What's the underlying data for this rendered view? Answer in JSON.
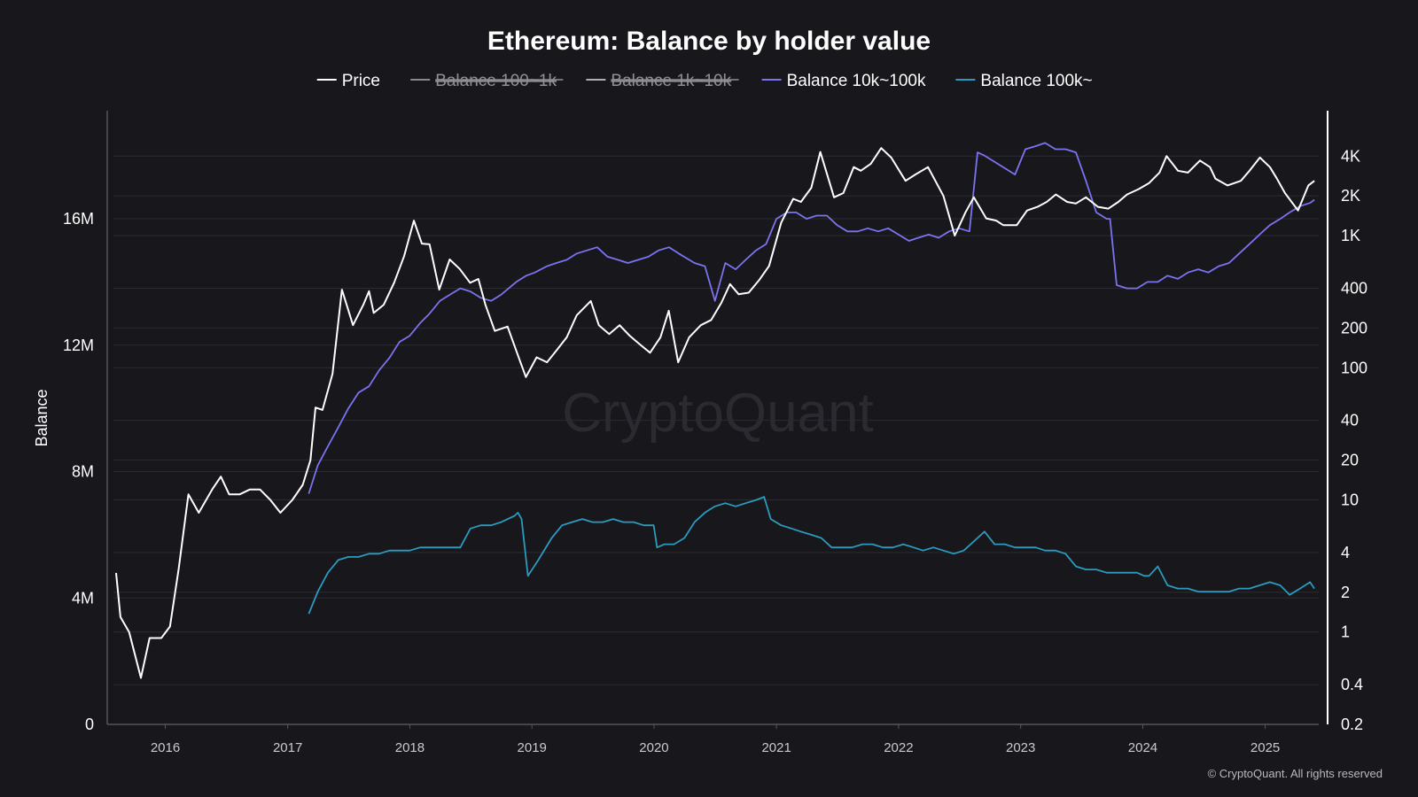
{
  "chart_data": {
    "type": "line",
    "title": "Ethereum: Balance by holder value",
    "watermark": "CryptoQuant",
    "footer": "© CryptoQuant. All rights reserved",
    "legend_position": "top-center",
    "grid": true,
    "y_left": {
      "label": "Balance",
      "range": [
        0,
        19000000
      ],
      "ticks": [
        0,
        4000000,
        8000000,
        12000000,
        16000000
      ],
      "tick_labels": [
        "0",
        "4M",
        "8M",
        "12M",
        "16M"
      ]
    },
    "y_right": {
      "label": "",
      "scale": "log",
      "range": [
        0.2,
        7000
      ],
      "ticks": [
        0.2,
        0.4,
        1,
        2,
        4,
        10,
        20,
        40,
        100,
        200,
        400,
        1000,
        2000,
        4000
      ],
      "tick_labels": [
        "0.2",
        "0.4",
        "1",
        "2",
        "4",
        "10",
        "20",
        "40",
        "100",
        "200",
        "400",
        "1K",
        "2K",
        "4K"
      ]
    },
    "x_axis": {
      "range": [
        "2015-07-30",
        "2025-06-10"
      ],
      "ticks": [
        "2016-01-01",
        "2017-01-01",
        "2018-01-01",
        "2019-01-01",
        "2020-01-01",
        "2021-01-01",
        "2022-01-01",
        "2023-01-01",
        "2024-01-01",
        "2025-01-01"
      ],
      "tick_labels": [
        "2016",
        "2017",
        "2018",
        "2019",
        "2020",
        "2021",
        "2022",
        "2023",
        "2024",
        "2025"
      ]
    },
    "colors": {
      "background": "#17171c",
      "price": "#ffffff",
      "balance_100_1k": "#8a8a8a",
      "balance_1k_10k": "#b0b0b0",
      "balance_10k_100k": "#7b73f0",
      "balance_100k": "#2b9bbf"
    },
    "series": [
      {
        "name": "Price",
        "axis": "right",
        "visible": true,
        "color": "#ffffff",
        "x": [
          "2015-08-07",
          "2015-08-20",
          "2015-09-15",
          "2015-10-20",
          "2015-11-15",
          "2015-12-20",
          "2016-01-15",
          "2016-02-10",
          "2016-03-10",
          "2016-04-10",
          "2016-05-20",
          "2016-06-15",
          "2016-07-10",
          "2016-08-10",
          "2016-09-10",
          "2016-10-10",
          "2016-11-10",
          "2016-12-10",
          "2017-01-15",
          "2017-02-15",
          "2017-03-10",
          "2017-03-25",
          "2017-04-15",
          "2017-05-15",
          "2017-06-12",
          "2017-07-15",
          "2017-08-15",
          "2017-09-01",
          "2017-09-15",
          "2017-10-15",
          "2017-11-15",
          "2017-12-15",
          "2018-01-13",
          "2018-02-06",
          "2018-03-01",
          "2018-03-30",
          "2018-04-30",
          "2018-05-30",
          "2018-06-30",
          "2018-07-25",
          "2018-08-15",
          "2018-09-12",
          "2018-10-20",
          "2018-11-25",
          "2018-12-14",
          "2019-01-15",
          "2019-02-15",
          "2019-03-15",
          "2019-04-15",
          "2019-05-15",
          "2019-06-26",
          "2019-07-20",
          "2019-08-20",
          "2019-09-20",
          "2019-10-20",
          "2019-11-20",
          "2019-12-20",
          "2020-01-20",
          "2020-02-14",
          "2020-03-13",
          "2020-04-15",
          "2020-05-20",
          "2020-06-20",
          "2020-07-20",
          "2020-08-15",
          "2020-09-10",
          "2020-10-10",
          "2020-11-10",
          "2020-12-10",
          "2021-01-15",
          "2021-02-20",
          "2021-03-15",
          "2021-04-15",
          "2021-05-12",
          "2021-06-22",
          "2021-07-20",
          "2021-08-20",
          "2021-09-10",
          "2021-10-10",
          "2021-11-10",
          "2021-12-10",
          "2022-01-22",
          "2022-02-20",
          "2022-03-30",
          "2022-05-15",
          "2022-06-18",
          "2022-07-20",
          "2022-08-14",
          "2022-09-20",
          "2022-10-20",
          "2022-11-10",
          "2022-12-20",
          "2023-01-20",
          "2023-02-20",
          "2023-03-20",
          "2023-04-16",
          "2023-05-20",
          "2023-06-15",
          "2023-07-15",
          "2023-08-20",
          "2023-09-20",
          "2023-10-20",
          "2023-11-15",
          "2023-12-20",
          "2024-01-20",
          "2024-02-20",
          "2024-03-12",
          "2024-04-15",
          "2024-05-15",
          "2024-06-20",
          "2024-07-20",
          "2024-08-05",
          "2024-09-10",
          "2024-10-20",
          "2024-11-15",
          "2024-12-16",
          "2025-01-15",
          "2025-02-05",
          "2025-03-01",
          "2025-04-09",
          "2025-05-10",
          "2025-05-28"
        ],
        "values": [
          2.8,
          1.3,
          1.0,
          0.45,
          0.9,
          0.9,
          1.1,
          3.0,
          11,
          8.0,
          12,
          15,
          11,
          11,
          12,
          12,
          10,
          8,
          10,
          13,
          20,
          50,
          48,
          90,
          390,
          210,
          300,
          380,
          260,
          300,
          440,
          700,
          1300,
          870,
          860,
          390,
          660,
          560,
          440,
          470,
          300,
          190,
          205,
          115,
          85,
          120,
          110,
          135,
          170,
          250,
          320,
          210,
          180,
          210,
          175,
          150,
          130,
          170,
          270,
          110,
          170,
          210,
          230,
          310,
          430,
          360,
          370,
          460,
          590,
          1250,
          1900,
          1800,
          2300,
          4300,
          1950,
          2100,
          3300,
          3100,
          3500,
          4600,
          3900,
          2600,
          2900,
          3300,
          2000,
          1000,
          1500,
          1950,
          1350,
          1300,
          1200,
          1200,
          1550,
          1650,
          1800,
          2050,
          1800,
          1750,
          1950,
          1650,
          1600,
          1800,
          2050,
          2250,
          2500,
          3000,
          4000,
          3100,
          3000,
          3700,
          3300,
          2700,
          2400,
          2600,
          3100,
          3900,
          3300,
          2700,
          2100,
          1550,
          2400,
          2600
        ]
      },
      {
        "name": "Balance 100~1k",
        "axis": "left",
        "visible": false,
        "color": "#8a8a8a",
        "x": [],
        "values": []
      },
      {
        "name": "Balance 1k~10k",
        "axis": "left",
        "visible": false,
        "color": "#b0b0b0",
        "x": [],
        "values": []
      },
      {
        "name": "Balance 10k~100k",
        "axis": "left",
        "visible": true,
        "color": "#7b73f0",
        "x": [
          "2017-03-05",
          "2017-04-01",
          "2017-05-01",
          "2017-06-01",
          "2017-07-01",
          "2017-08-01",
          "2017-09-01",
          "2017-10-01",
          "2017-11-01",
          "2017-12-01",
          "2018-01-01",
          "2018-02-01",
          "2018-03-01",
          "2018-04-01",
          "2018-05-01",
          "2018-06-01",
          "2018-07-01",
          "2018-08-01",
          "2018-09-01",
          "2018-10-01",
          "2018-11-15",
          "2018-12-15",
          "2019-01-10",
          "2019-02-15",
          "2019-03-15",
          "2019-04-15",
          "2019-05-15",
          "2019-06-15",
          "2019-07-15",
          "2019-08-15",
          "2019-09-15",
          "2019-10-15",
          "2019-11-15",
          "2019-12-15",
          "2020-01-15",
          "2020-02-15",
          "2020-03-15",
          "2020-04-15",
          "2020-05-01",
          "2020-06-01",
          "2020-07-01",
          "2020-08-01",
          "2020-09-01",
          "2020-10-01",
          "2020-11-01",
          "2020-12-01",
          "2021-01-01",
          "2021-02-01",
          "2021-03-01",
          "2021-04-01",
          "2021-05-01",
          "2021-06-01",
          "2021-07-01",
          "2021-08-01",
          "2021-09-01",
          "2021-10-01",
          "2021-11-01",
          "2021-12-01",
          "2022-01-01",
          "2022-02-01",
          "2022-03-01",
          "2022-04-01",
          "2022-05-01",
          "2022-06-01",
          "2022-07-01",
          "2022-08-01",
          "2022-08-25",
          "2022-09-15",
          "2022-10-15",
          "2022-11-15",
          "2022-12-15",
          "2023-01-15",
          "2023-02-15",
          "2023-03-15",
          "2023-04-15",
          "2023-05-15",
          "2023-06-15",
          "2023-07-15",
          "2023-08-15",
          "2023-09-15",
          "2023-09-25",
          "2023-10-15",
          "2023-11-15",
          "2023-12-15",
          "2024-01-15",
          "2024-02-15",
          "2024-03-15",
          "2024-04-15",
          "2024-05-15",
          "2024-06-15",
          "2024-07-15",
          "2024-08-15",
          "2024-09-15",
          "2024-10-15",
          "2024-11-15",
          "2024-12-15",
          "2025-01-15",
          "2025-02-15",
          "2025-03-15",
          "2025-04-15",
          "2025-05-15",
          "2025-05-28"
        ],
        "values": [
          7.3,
          8.2,
          8.8,
          9.4,
          10.0,
          10.5,
          10.7,
          11.2,
          11.6,
          12.1,
          12.3,
          12.7,
          13.0,
          13.4,
          13.6,
          13.8,
          13.7,
          13.5,
          13.4,
          13.6,
          14.0,
          14.2,
          14.3,
          14.5,
          14.6,
          14.7,
          14.9,
          15.0,
          15.1,
          14.8,
          14.7,
          14.6,
          14.7,
          14.8,
          15.0,
          15.1,
          14.9,
          14.7,
          14.6,
          14.5,
          13.4,
          14.6,
          14.4,
          14.7,
          15.0,
          15.2,
          16.0,
          16.2,
          16.2,
          16.0,
          16.1,
          16.1,
          15.8,
          15.6,
          15.6,
          15.7,
          15.6,
          15.7,
          15.5,
          15.3,
          15.4,
          15.5,
          15.4,
          15.6,
          15.7,
          15.6,
          18.1,
          18.0,
          17.8,
          17.6,
          17.4,
          18.2,
          18.3,
          18.4,
          18.2,
          18.2,
          18.1,
          17.2,
          16.2,
          16.0,
          16.0,
          13.9,
          13.8,
          13.8,
          14.0,
          14.0,
          14.2,
          14.1,
          14.3,
          14.4,
          14.3,
          14.5,
          14.6,
          14.9,
          15.2,
          15.5,
          15.8,
          16.0,
          16.2,
          16.4,
          16.5,
          16.6
        ]
      },
      {
        "name": "Balance 100k~",
        "axis": "left",
        "visible": true,
        "color": "#2b9bbf",
        "x": [
          "2017-03-05",
          "2017-04-01",
          "2017-05-01",
          "2017-06-01",
          "2017-07-01",
          "2017-08-01",
          "2017-09-01",
          "2017-10-01",
          "2017-11-01",
          "2017-12-01",
          "2018-01-01",
          "2018-02-01",
          "2018-03-01",
          "2018-04-01",
          "2018-05-01",
          "2018-06-01",
          "2018-07-01",
          "2018-08-01",
          "2018-09-01",
          "2018-10-01",
          "2018-11-10",
          "2018-11-20",
          "2018-12-01",
          "2018-12-20",
          "2019-01-20",
          "2019-03-01",
          "2019-04-01",
          "2019-05-01",
          "2019-06-01",
          "2019-07-01",
          "2019-08-01",
          "2019-09-01",
          "2019-10-01",
          "2019-11-01",
          "2019-12-01",
          "2019-12-31",
          "2020-01-10",
          "2020-02-01",
          "2020-03-01",
          "2020-04-01",
          "2020-05-01",
          "2020-06-01",
          "2020-07-01",
          "2020-08-01",
          "2020-09-01",
          "2020-10-01",
          "2020-11-01",
          "2020-11-25",
          "2020-12-15",
          "2021-01-15",
          "2021-02-15",
          "2021-03-15",
          "2021-04-15",
          "2021-05-15",
          "2021-06-15",
          "2021-07-15",
          "2021-08-15",
          "2021-09-15",
          "2021-10-15",
          "2021-11-15",
          "2021-12-15",
          "2022-01-15",
          "2022-02-15",
          "2022-03-15",
          "2022-04-15",
          "2022-05-15",
          "2022-06-15",
          "2022-07-15",
          "2022-08-15",
          "2022-09-15",
          "2022-10-15",
          "2022-11-15",
          "2022-12-15",
          "2023-01-15",
          "2023-02-15",
          "2023-03-15",
          "2023-04-15",
          "2023-05-15",
          "2023-06-15",
          "2023-07-15",
          "2023-08-15",
          "2023-09-15",
          "2023-10-15",
          "2023-11-15",
          "2023-12-15",
          "2024-01-05",
          "2024-01-20",
          "2024-02-15",
          "2024-03-15",
          "2024-04-15",
          "2024-05-15",
          "2024-06-15",
          "2024-07-15",
          "2024-08-15",
          "2024-09-15",
          "2024-10-15",
          "2024-11-15",
          "2024-12-15",
          "2025-01-15",
          "2025-02-15",
          "2025-03-15",
          "2025-04-15",
          "2025-05-15",
          "2025-05-28"
        ],
        "values": [
          3.5,
          4.2,
          4.8,
          5.2,
          5.3,
          5.3,
          5.4,
          5.4,
          5.5,
          5.5,
          5.5,
          5.6,
          5.6,
          5.6,
          5.6,
          5.6,
          6.2,
          6.3,
          6.3,
          6.4,
          6.6,
          6.7,
          6.5,
          4.7,
          5.2,
          5.9,
          6.3,
          6.4,
          6.5,
          6.4,
          6.4,
          6.5,
          6.4,
          6.4,
          6.3,
          6.3,
          5.6,
          5.7,
          5.7,
          5.9,
          6.4,
          6.7,
          6.9,
          7.0,
          6.9,
          7.0,
          7.1,
          7.2,
          6.5,
          6.3,
          6.2,
          6.1,
          6.0,
          5.9,
          5.6,
          5.6,
          5.6,
          5.7,
          5.7,
          5.6,
          5.6,
          5.7,
          5.6,
          5.5,
          5.6,
          5.5,
          5.4,
          5.5,
          5.8,
          6.1,
          5.7,
          5.7,
          5.6,
          5.6,
          5.6,
          5.5,
          5.5,
          5.4,
          5.0,
          4.9,
          4.9,
          4.8,
          4.8,
          4.8,
          4.8,
          4.7,
          4.7,
          5.0,
          4.4,
          4.3,
          4.3,
          4.2,
          4.2,
          4.2,
          4.2,
          4.3,
          4.3,
          4.4,
          4.5,
          4.4,
          4.1,
          4.3,
          4.5,
          4.3
        ]
      }
    ]
  }
}
